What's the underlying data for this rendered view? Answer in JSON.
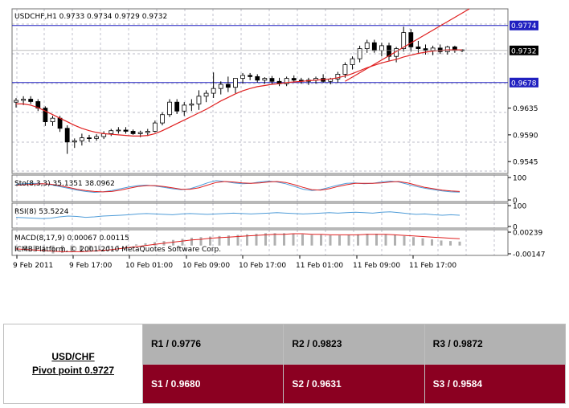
{
  "chart_data": [
    {
      "type": "candlestick",
      "header": "USDCHF,H1  0.9733 0.9734 0.9729 0.9732",
      "symbol": "USDCHF,H1",
      "ohlc_display": "0.9733 0.9734 0.9729 0.9732",
      "y_ticks": [
        "0.9635",
        "0.9590",
        "0.9545"
      ],
      "ylim": [
        0.9525,
        0.9802
      ],
      "x_tick_labels": [
        "9 Feb 2011",
        "9 Feb 17:00",
        "10 Feb 01:00",
        "10 Feb 09:00",
        "10 Feb 17:00",
        "11 Feb 01:00",
        "11 Feb 09:00",
        "11 Feb 17:00"
      ],
      "horizontal_levels": [
        {
          "value": 0.9774,
          "label": "0.9774"
        },
        {
          "value": 0.9678,
          "label": "0.9678"
        }
      ],
      "current_price": {
        "value": 0.9732,
        "label": "0.9732"
      },
      "candles": [
        [
          0.9645,
          0.9652,
          0.9636,
          0.9648
        ],
        [
          0.9648,
          0.9655,
          0.964,
          0.965
        ],
        [
          0.965,
          0.9655,
          0.9642,
          0.9646
        ],
        [
          0.9646,
          0.965,
          0.963,
          0.9635
        ],
        [
          0.9635,
          0.9638,
          0.9605,
          0.9612
        ],
        [
          0.9612,
          0.9622,
          0.9605,
          0.9618
        ],
        [
          0.9618,
          0.9622,
          0.9595,
          0.9601
        ],
        [
          0.9601,
          0.9606,
          0.9558,
          0.9578
        ],
        [
          0.9578,
          0.9584,
          0.9568,
          0.958
        ],
        [
          0.958,
          0.9592,
          0.9572,
          0.9585
        ],
        [
          0.9585,
          0.959,
          0.9578,
          0.9584
        ],
        [
          0.9584,
          0.9591,
          0.958,
          0.9587
        ],
        [
          0.9587,
          0.9596,
          0.9583,
          0.9592
        ],
        [
          0.9592,
          0.96,
          0.9588,
          0.9597
        ],
        [
          0.9597,
          0.9603,
          0.9592,
          0.9598
        ],
        [
          0.9598,
          0.9603,
          0.9592,
          0.9596
        ],
        [
          0.9596,
          0.9599,
          0.959,
          0.9592
        ],
        [
          0.9592,
          0.9597,
          0.9586,
          0.9594
        ],
        [
          0.9594,
          0.96,
          0.9588,
          0.9596
        ],
        [
          0.9596,
          0.9614,
          0.9594,
          0.961
        ],
        [
          0.961,
          0.9628,
          0.9606,
          0.9624
        ],
        [
          0.9624,
          0.965,
          0.962,
          0.9645
        ],
        [
          0.9645,
          0.965,
          0.9625,
          0.963
        ],
        [
          0.963,
          0.9645,
          0.9622,
          0.964
        ],
        [
          0.964,
          0.965,
          0.963,
          0.9642
        ],
        [
          0.9642,
          0.9665,
          0.9632,
          0.9655
        ],
        [
          0.9655,
          0.9665,
          0.9645,
          0.966
        ],
        [
          0.966,
          0.9695,
          0.9652,
          0.9668
        ],
        [
          0.9668,
          0.968,
          0.9658,
          0.9675
        ],
        [
          0.9675,
          0.9688,
          0.9662,
          0.967
        ],
        [
          0.967,
          0.9684,
          0.966,
          0.9685
        ],
        [
          0.9685,
          0.9694,
          0.9676,
          0.969
        ],
        [
          0.969,
          0.9694,
          0.9682,
          0.9688
        ],
        [
          0.9688,
          0.9692,
          0.9678,
          0.9682
        ],
        [
          0.9682,
          0.9687,
          0.9676,
          0.9685
        ],
        [
          0.9685,
          0.9689,
          0.9675,
          0.968
        ],
        [
          0.968,
          0.9686,
          0.9672,
          0.9676
        ],
        [
          0.9676,
          0.9688,
          0.9672,
          0.9685
        ],
        [
          0.9685,
          0.969,
          0.9678,
          0.9682
        ],
        [
          0.9682,
          0.9686,
          0.9676,
          0.968
        ],
        [
          0.968,
          0.9686,
          0.9674,
          0.9682
        ],
        [
          0.9682,
          0.9688,
          0.9676,
          0.9685
        ],
        [
          0.9685,
          0.9692,
          0.9678,
          0.968
        ],
        [
          0.968,
          0.9686,
          0.9675,
          0.9684
        ],
        [
          0.9684,
          0.9696,
          0.9678,
          0.9692
        ],
        [
          0.9692,
          0.9712,
          0.9686,
          0.9708
        ],
        [
          0.9708,
          0.9722,
          0.97,
          0.9718
        ],
        [
          0.9718,
          0.974,
          0.9712,
          0.9735
        ],
        [
          0.9735,
          0.975,
          0.9728,
          0.9745
        ],
        [
          0.9745,
          0.975,
          0.9728,
          0.9732
        ],
        [
          0.9732,
          0.9745,
          0.9722,
          0.974
        ],
        [
          0.974,
          0.9745,
          0.9715,
          0.9722
        ],
        [
          0.9722,
          0.9738,
          0.9712,
          0.9735
        ],
        [
          0.9735,
          0.9772,
          0.973,
          0.9762
        ],
        [
          0.9762,
          0.9768,
          0.973,
          0.9738
        ],
        [
          0.9738,
          0.9748,
          0.9728,
          0.9735
        ],
        [
          0.9735,
          0.9742,
          0.9725,
          0.9732
        ],
        [
          0.9732,
          0.974,
          0.9724,
          0.9736
        ],
        [
          0.9736,
          0.9742,
          0.9726,
          0.973
        ],
        [
          0.973,
          0.974,
          0.9725,
          0.9738
        ],
        [
          0.9738,
          0.974,
          0.9728,
          0.9732
        ],
        [
          0.9733,
          0.9734,
          0.9729,
          0.9732
        ]
      ],
      "moving_average": [
        0.9642,
        0.9642,
        0.964,
        0.9636,
        0.963,
        0.9624,
        0.9618,
        0.9612,
        0.9606,
        0.9601,
        0.9597,
        0.9594,
        0.9592,
        0.9591,
        0.959,
        0.9589,
        0.9588,
        0.9588,
        0.9589,
        0.9592,
        0.9597,
        0.9603,
        0.9609,
        0.9615,
        0.9621,
        0.9627,
        0.9633,
        0.964,
        0.9647,
        0.9653,
        0.9659,
        0.9664,
        0.9668,
        0.9671,
        0.9673,
        0.9675,
        0.9676,
        0.9678,
        0.9679,
        0.968,
        0.9681,
        0.9682,
        0.9683,
        0.9684,
        0.9686,
        0.9689,
        0.9693,
        0.9698,
        0.9703,
        0.9707,
        0.9711,
        0.9714,
        0.9717,
        0.9721,
        0.9724,
        0.9727,
        0.9729,
        0.9731,
        0.9732,
        0.9733,
        0.9733,
        0.9733
      ],
      "trendline": [
        {
          "bar": 45,
          "value": 0.968
        },
        {
          "bar": 62,
          "value": 0.9802
        }
      ]
    },
    {
      "type": "line",
      "header": "Sto(8,3,3) 35.1351 38.0962",
      "y_ticks": [
        "100",
        "0"
      ],
      "ylim": [
        0,
        100
      ],
      "series": [
        {
          "color": "#4f9cd8",
          "values": [
            70,
            72,
            74,
            72,
            68,
            60,
            52,
            44,
            38,
            34,
            36,
            42,
            50,
            58,
            64,
            66,
            62,
            56,
            50,
            46,
            50,
            62,
            76,
            86,
            82,
            76,
            72,
            74,
            80,
            84,
            80,
            72,
            60,
            48,
            42,
            46,
            56,
            66,
            74,
            76,
            72,
            74,
            80,
            84,
            80,
            70,
            60,
            52,
            46,
            40,
            36,
            35
          ]
        },
        {
          "color": "#e02020",
          "values": [
            66,
            68,
            70,
            72,
            70,
            64,
            56,
            48,
            42,
            38,
            36,
            38,
            44,
            52,
            60,
            64,
            64,
            60,
            54,
            48,
            48,
            54,
            66,
            78,
            82,
            80,
            76,
            74,
            76,
            80,
            82,
            78,
            68,
            56,
            46,
            44,
            50,
            60,
            68,
            74,
            74,
            74,
            76,
            80,
            82,
            76,
            66,
            56,
            50,
            44,
            40,
            38
          ]
        }
      ]
    },
    {
      "type": "line",
      "header": "RSI(8) 53.5224",
      "y_ticks": [
        "100",
        "0"
      ],
      "ylim": [
        0,
        100
      ],
      "series": [
        {
          "color": "#4f9cd8",
          "values": [
            44,
            42,
            40,
            38,
            40,
            46,
            50,
            48,
            44,
            46,
            50,
            52,
            54,
            56,
            60,
            62,
            60,
            58,
            56,
            60,
            62,
            60,
            58,
            60,
            62,
            64,
            62,
            60,
            62,
            64,
            66,
            64,
            62,
            60,
            62,
            64,
            66,
            64,
            66,
            68,
            66,
            64,
            68,
            70,
            66,
            62,
            58,
            60,
            56,
            54,
            56,
            54
          ]
        }
      ]
    },
    {
      "type": "bar",
      "header": "MACD(8,17,9) 0.00067 0.00115",
      "y_ticks": [
        "0.00239",
        "-0.00147"
      ],
      "ylim": [
        -0.00147,
        0.00239
      ],
      "series": [
        {
          "color": "#b0b0b0",
          "values": [
            -0.0009,
            -0.001,
            -0.0011,
            -0.0012,
            -0.0014,
            -0.0013,
            -0.0012,
            -0.001,
            -0.0008,
            -0.0006,
            -0.0004,
            -0.0002,
            0.0,
            0.0002,
            0.0004,
            0.0006,
            0.0008,
            0.001,
            0.0012,
            0.0014,
            0.0015,
            0.0016,
            0.0017,
            0.0018,
            0.0019,
            0.002,
            0.0021,
            0.0022,
            0.0022,
            0.0022,
            0.0021,
            0.002,
            0.0019,
            0.0019,
            0.0018,
            0.0018,
            0.0019,
            0.002,
            0.0021,
            0.0021,
            0.002,
            0.0019,
            0.0017,
            0.0015,
            0.0013,
            0.0011,
            0.0009,
            0.0008,
            0.0007
          ]
        },
        {
          "color": "#e02020",
          "values": [
            -0.0006,
            -0.0007,
            -0.0008,
            -0.0009,
            -0.001,
            -0.0011,
            -0.0011,
            -0.0011,
            -0.001,
            -0.0009,
            -0.0008,
            -0.0006,
            -0.0004,
            -0.0002,
            0.0,
            0.0002,
            0.0004,
            0.0006,
            0.0008,
            0.001,
            0.0011,
            0.0013,
            0.0014,
            0.0015,
            0.0016,
            0.0017,
            0.0018,
            0.0019,
            0.002,
            0.002,
            0.0021,
            0.0021,
            0.002,
            0.002,
            0.0019,
            0.0019,
            0.0019,
            0.0019,
            0.002,
            0.002,
            0.002,
            0.0019,
            0.0018,
            0.0017,
            0.0016,
            0.0015,
            0.0014,
            0.0013,
            0.0012
          ]
        }
      ]
    }
  ],
  "copyright": "ICMB Platform, © 2001-2010 MetaQuotes Software Corp.",
  "pivot_table": {
    "pair": "USD/CHF",
    "pivot": "Pivot point 0.9727",
    "resistances": [
      "R1 / 0.9776",
      "R2 / 0.9823",
      "R3 / 0.9872"
    ],
    "supports": [
      "S1 / 0.9680",
      "S2 / 0.9631",
      "S3 / 0.9584"
    ]
  },
  "colors": {
    "bull_candle": "#ffffff",
    "bear_candle": "#000000",
    "moving_average": "#e02020",
    "level_line": "#2020c0",
    "grid": "#a8a8b8",
    "resistance_row": "#b2b2b2",
    "support_row": "#8b0021"
  }
}
